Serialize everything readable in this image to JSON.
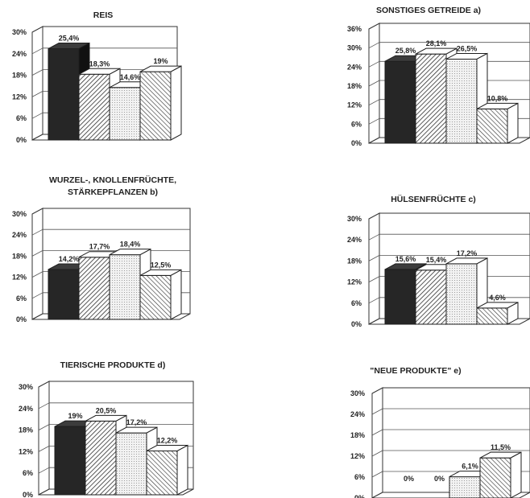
{
  "chart_data": [
    {
      "type": "bar",
      "title": "REIS",
      "ylim": [
        0,
        30
      ],
      "yticks": [
        "0%",
        "6%",
        "12%",
        "18%",
        "24%",
        "30%"
      ],
      "grid": true,
      "values": [
        25.4,
        18.3,
        14.6,
        19
      ],
      "value_labels": [
        "25,4%",
        "18,3%",
        "14,6%",
        "19%"
      ]
    },
    {
      "type": "bar",
      "title": "SONSTIGES GETREIDE a)",
      "ylim": [
        0,
        36
      ],
      "yticks": [
        "0%",
        "6%",
        "12%",
        "18%",
        "24%",
        "30%",
        "36%"
      ],
      "grid": true,
      "values": [
        25.8,
        28.1,
        26.5,
        10.8
      ],
      "value_labels": [
        "25,8%",
        "28,1%",
        "26,5%",
        "10,8%"
      ]
    },
    {
      "type": "bar",
      "title": "WURZEL-, KNOLLENFRÜCHTE, STÄRKEPFLANZEN b)",
      "title_lines": [
        "WURZEL-, KNOLLENFRÜCHTE,",
        "STÄRKEPFLANZEN b)"
      ],
      "ylim": [
        0,
        30
      ],
      "yticks": [
        "0%",
        "6%",
        "12%",
        "18%",
        "24%",
        "30%"
      ],
      "grid": true,
      "values": [
        14.2,
        17.7,
        18.4,
        12.5
      ],
      "value_labels": [
        "14,2%",
        "17,7%",
        "18,4%",
        "12,5%"
      ]
    },
    {
      "type": "bar",
      "title": "HÜLSENFRÜCHTE c)",
      "ylim": [
        0,
        30
      ],
      "yticks": [
        "0%",
        "6%",
        "12%",
        "18%",
        "24%",
        "30%"
      ],
      "grid": true,
      "values": [
        15.6,
        15.4,
        17.2,
        4.6
      ],
      "value_labels": [
        "15,6%",
        "15,4%",
        "17,2%",
        "4,6%"
      ]
    },
    {
      "type": "bar",
      "title": "TIERISCHE PRODUKTE d)",
      "ylim": [
        0,
        30
      ],
      "yticks": [
        "0%",
        "6%",
        "12%",
        "18%",
        "24%",
        "30%"
      ],
      "grid": true,
      "values": [
        19,
        20.5,
        17.2,
        12.2
      ],
      "value_labels": [
        "19%",
        "20,5%",
        "17,2%",
        "12,2%"
      ]
    },
    {
      "type": "bar",
      "title": "\"NEUE PRODUKTE\" e)",
      "ylim": [
        0,
        30
      ],
      "yticks": [
        "0%",
        "6%",
        "12%",
        "18%",
        "24%",
        "30%"
      ],
      "grid": true,
      "values": [
        0,
        0,
        6.1,
        11.5
      ],
      "value_labels": [
        "0%",
        "0%",
        "6,1%",
        "11,5%"
      ]
    }
  ],
  "bar_styles": [
    {
      "pattern": "solid-dark",
      "color": "#262626"
    },
    {
      "pattern": "diagonal-hatch",
      "color": "#3a3a3a"
    },
    {
      "pattern": "light-dots",
      "color": "#9a9a9a"
    },
    {
      "pattern": "diagonal-hatch-light",
      "color": "#3a3a3a"
    }
  ]
}
